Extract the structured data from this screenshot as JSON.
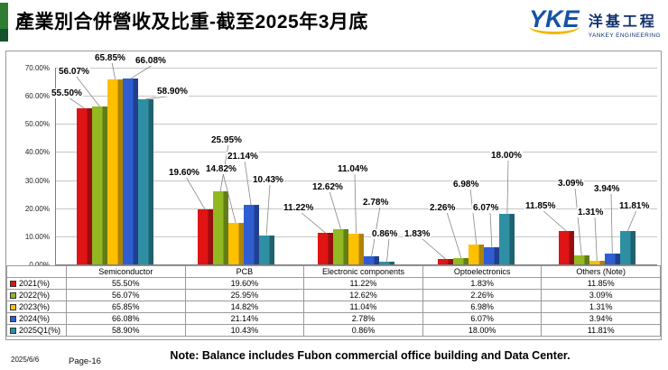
{
  "slide": {
    "title": "產業別合併營收及比重-截至2025年3月底",
    "accent_color": "#2e7d32",
    "logo": {
      "abbr": "YKE",
      "company_zh": "洋基工程",
      "company_en": "YANKEY ENGINEERING",
      "blue": "#1553a4",
      "gold": "#f2b705"
    },
    "footer": {
      "date": "2025/6/6",
      "page": "Page-16",
      "note": "Note: Balance includes Fubon commercial office building and Data Center."
    }
  },
  "chart_data": {
    "type": "bar",
    "title": "產業別合併營收及比重-截至2025年3月底",
    "categories": [
      "Semiconductor",
      "PCB",
      "Electronic components",
      "Optoelectronics",
      "Others (Note)"
    ],
    "series": [
      {
        "name": "2021(%)",
        "color": "#e01414",
        "values": [
          55.5,
          19.6,
          11.22,
          1.83,
          11.85
        ]
      },
      {
        "name": "2022(%)",
        "color": "#92b822",
        "values": [
          56.07,
          25.95,
          12.62,
          2.26,
          3.09
        ]
      },
      {
        "name": "2023(%)",
        "color": "#ffc000",
        "values": [
          65.85,
          14.82,
          11.04,
          6.98,
          1.31
        ]
      },
      {
        "name": "2024(%)",
        "color": "#2f5ed2",
        "values": [
          66.08,
          21.14,
          2.78,
          6.07,
          3.94
        ]
      },
      {
        "name": "2025Q1(%)",
        "color": "#2e8fa3",
        "values": [
          58.9,
          10.43,
          0.86,
          18.0,
          11.81
        ]
      }
    ],
    "ylim": [
      0,
      70
    ],
    "ytick_step": 10,
    "ytick_labels": [
      "0.00%",
      "10.00%",
      "20.00%",
      "30.00%",
      "40.00%",
      "50.00%",
      "60.00%",
      "70.00%"
    ],
    "grid": true,
    "legend_position": "table-left",
    "value_suffix": "%",
    "data_labels": true
  }
}
